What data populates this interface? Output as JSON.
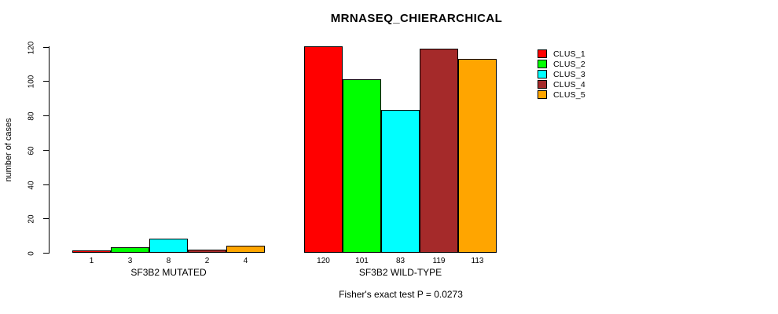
{
  "title": "MRNASEQ_CHIERARCHICAL",
  "annotation": "Fisher's exact test P = 0.0273",
  "y_axis": {
    "label": "number of cases",
    "ticks": [
      0,
      20,
      40,
      60,
      80,
      100,
      120
    ]
  },
  "chart_data": {
    "type": "bar",
    "title": "MRNASEQ_CHIERARCHICAL",
    "ylabel": "number of cases",
    "xlabel": "",
    "ylim": [
      0,
      120
    ],
    "yticks": [
      0,
      20,
      40,
      60,
      80,
      100,
      120
    ],
    "grid": false,
    "legend_position": "right",
    "categories": [
      "SF3B2 MUTATED",
      "SF3B2 WILD-TYPE"
    ],
    "series": [
      {
        "name": "CLUS_1",
        "color": "#ff0000",
        "values": [
          1,
          120
        ]
      },
      {
        "name": "CLUS_2",
        "color": "#00ff00",
        "values": [
          3,
          101
        ]
      },
      {
        "name": "CLUS_3",
        "color": "#00ffff",
        "values": [
          8,
          83
        ]
      },
      {
        "name": "CLUS_4",
        "color": "#a52a2a",
        "values": [
          2,
          119
        ]
      },
      {
        "name": "CLUS_5",
        "color": "#ffa500",
        "values": [
          4,
          113
        ]
      }
    ],
    "bar_value_labels": [
      [
        1,
        3,
        8,
        2,
        4
      ],
      [
        120,
        101,
        83,
        119,
        113
      ]
    ],
    "annotation": "Fisher's exact test P = 0.0273"
  }
}
